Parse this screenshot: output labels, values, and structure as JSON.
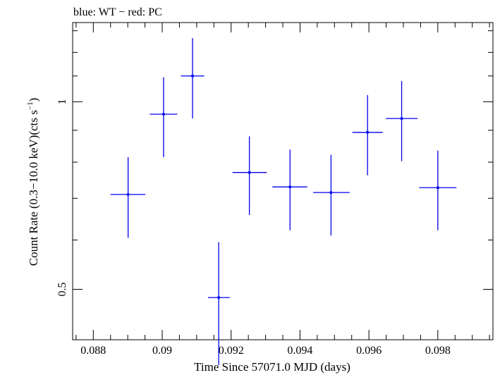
{
  "chart_data": {
    "type": "scatter",
    "title": "blue: WT − red: PC",
    "xlabel": "Time Since 57071.0 MJD (days)",
    "ylabel_main": "Count Rate (0.3−10.0 keV)(cts s",
    "ylabel_sup": "−1",
    "ylabel_end": ")",
    "xlim": [
      0.0874,
      0.0996
    ],
    "ylim": [
      0.415,
      1.34
    ],
    "y_scale": "log",
    "grid": false,
    "x_ticks": [
      {
        "value": 0.088,
        "label": "0.088"
      },
      {
        "value": 0.09,
        "label": "0.09"
      },
      {
        "value": 0.092,
        "label": "0.092"
      },
      {
        "value": 0.094,
        "label": "0.094"
      },
      {
        "value": 0.096,
        "label": "0.096"
      },
      {
        "value": 0.098,
        "label": "0.098"
      }
    ],
    "y_ticks": [
      {
        "value": 0.5,
        "label": "0.5"
      },
      {
        "value": 1,
        "label": "1"
      }
    ],
    "series": [
      {
        "color": "#0000ee",
        "points": [
          {
            "x": 0.08901,
            "xlo": 0.0885,
            "xhi": 0.08951,
            "y": 0.71,
            "ylo": 0.605,
            "yhi": 0.815
          },
          {
            "x": 0.09004,
            "xlo": 0.08964,
            "xhi": 0.09044,
            "y": 0.955,
            "ylo": 0.815,
            "yhi": 1.095
          },
          {
            "x": 0.09088,
            "xlo": 0.09054,
            "xhi": 0.09122,
            "y": 1.1,
            "ylo": 0.94,
            "yhi": 1.265
          },
          {
            "x": 0.09164,
            "xlo": 0.09133,
            "xhi": 0.09196,
            "y": 0.485,
            "ylo": 0.378,
            "yhi": 0.595
          },
          {
            "x": 0.09253,
            "xlo": 0.09204,
            "xhi": 0.09303,
            "y": 0.77,
            "ylo": 0.658,
            "yhi": 0.88
          },
          {
            "x": 0.09371,
            "xlo": 0.0932,
            "xhi": 0.09421,
            "y": 0.73,
            "ylo": 0.622,
            "yhi": 0.838
          },
          {
            "x": 0.0949,
            "xlo": 0.09438,
            "xhi": 0.09544,
            "y": 0.715,
            "ylo": 0.61,
            "yhi": 0.822
          },
          {
            "x": 0.09596,
            "xlo": 0.09552,
            "xhi": 0.0964,
            "y": 0.893,
            "ylo": 0.762,
            "yhi": 1.025
          },
          {
            "x": 0.09695,
            "xlo": 0.09649,
            "xhi": 0.09741,
            "y": 0.94,
            "ylo": 0.803,
            "yhi": 1.08
          },
          {
            "x": 0.098,
            "xlo": 0.09746,
            "xhi": 0.09854,
            "y": 0.728,
            "ylo": 0.622,
            "yhi": 0.835
          }
        ]
      }
    ]
  }
}
